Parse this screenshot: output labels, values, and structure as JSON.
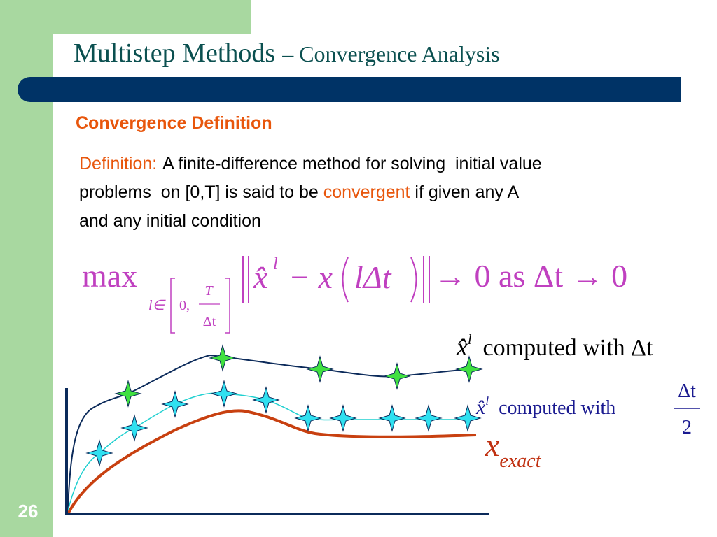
{
  "slide_number": "26",
  "title": {
    "main": "Multistep Methods",
    "suffix": "– Convergence Analysis"
  },
  "section": "Convergence Definition",
  "definition": {
    "label": "Definition:",
    "line1": "A finite-difference method for solving  initial value",
    "line2_before": "problems  on [0,T] is said to be ",
    "keyword": "convergent",
    "line2_after": " if given any A",
    "line3": "and any initial condition"
  },
  "formula": {
    "max": "max",
    "sub_var": "l∈",
    "sub_zero": "0,",
    "sub_num": "T",
    "sub_den": "Δt",
    "xhat": "x̂",
    "sup": "l",
    "minus_x": "− x",
    "arg": "lΔt",
    "limit": "→ 0 as Δt → 0"
  },
  "legend": [
    {
      "symbol": "x̂",
      "sup": "l",
      "text": "computed with Δt"
    },
    {
      "symbol": "x̂",
      "sup": "l",
      "text": "computed with",
      "num": "Δt",
      "den": "2"
    },
    {
      "symbol": "x",
      "sub": "exact"
    }
  ]
}
